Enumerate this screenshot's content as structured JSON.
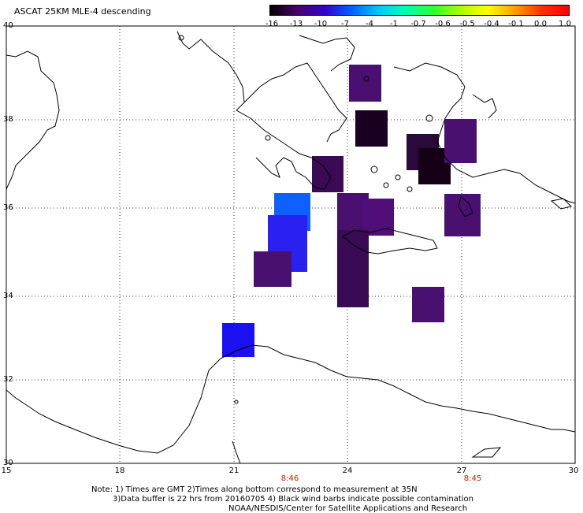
{
  "title": "ASCAT 25KM MLE-4 descending",
  "colorbar": {
    "labels": [
      "-16",
      "-13",
      "-10",
      "-7",
      "-4",
      "-1",
      "-0.7",
      "-0.6",
      "-0.5",
      "-0.4",
      "-0.1",
      "0.0",
      "1.0"
    ],
    "colors": [
      "#000000",
      "#4a006a",
      "#3500c8",
      "#0060ff",
      "#00c8ff",
      "#00ffb0",
      "#30ff30",
      "#a8ff00",
      "#ffff00",
      "#ffa000",
      "#ff3000",
      "#ff0000"
    ]
  },
  "axes": {
    "lon_ticks": [
      "15",
      "18",
      "21",
      "24",
      "27",
      "30"
    ],
    "lat_ticks": [
      "40",
      "38",
      "36",
      "34",
      "32",
      "30"
    ]
  },
  "time_labels": [
    "8:46",
    "8:45"
  ],
  "notes": {
    "line1": "Note: 1) Times are GMT 2)Times along bottom correspond to measurement at 35N",
    "line2": "3)Data buffer is 22 hrs from 20160705 4) Black wind barbs indicate possible contamination",
    "line3": "NOAA/NESDIS/Center for Satellite Applications and Research"
  },
  "data_blocks": [
    {
      "name": "cell-aegean-north",
      "color": "#4a1070"
    },
    {
      "name": "cell-aegean-dark",
      "color": "#1a0020"
    },
    {
      "name": "cell-peloponnese",
      "color": "#3a0a55"
    },
    {
      "name": "cell-aegean-east-a",
      "color": "#2a0a3a"
    },
    {
      "name": "cell-aegean-east-b",
      "color": "#150015"
    },
    {
      "name": "cell-aegean-east-c",
      "color": "#4a1070"
    },
    {
      "name": "cell-crete-a",
      "color": "#4a1070"
    },
    {
      "name": "cell-crete-b",
      "color": "#500e78"
    },
    {
      "name": "cell-crete-c",
      "color": "#3a0a55"
    },
    {
      "name": "cell-rhodes",
      "color": "#4a1070"
    },
    {
      "name": "cell-ionian-blue-a",
      "color": "#1060ff"
    },
    {
      "name": "cell-ionian-blue-b",
      "color": "#2a20f0"
    },
    {
      "name": "cell-ionian-purple",
      "color": "#4a1070"
    },
    {
      "name": "cell-libya-blue",
      "color": "#1a10f0"
    },
    {
      "name": "cell-south-crete",
      "color": "#4a1070"
    }
  ]
}
